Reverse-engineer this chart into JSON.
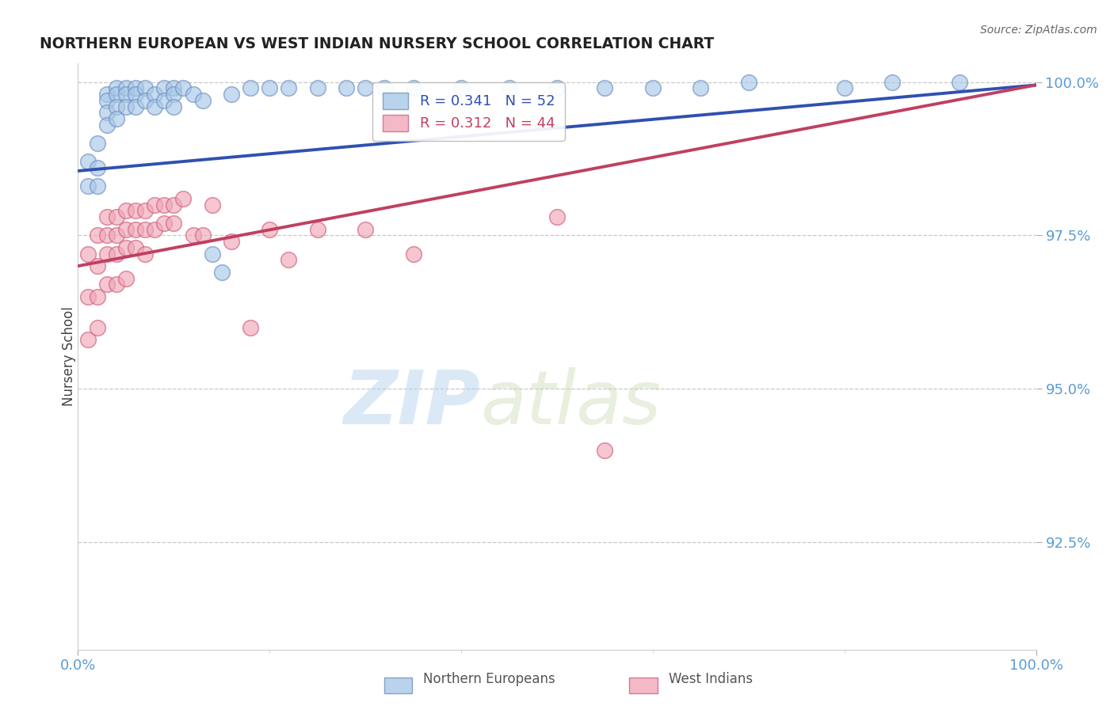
{
  "title": "NORTHERN EUROPEAN VS WEST INDIAN NURSERY SCHOOL CORRELATION CHART",
  "source": "Source: ZipAtlas.com",
  "ylabel": "Nursery School",
  "xlim": [
    0.0,
    1.0
  ],
  "ylim": [
    0.9075,
    1.003
  ],
  "yticks": [
    1.0,
    0.975,
    0.95,
    0.925
  ],
  "ytick_labels": [
    "100.0%",
    "97.5%",
    "95.0%",
    "92.5%"
  ],
  "xtick_labels": [
    "0.0%",
    "100.0%"
  ],
  "xticks": [
    0.0,
    1.0
  ],
  "legend_R_blue": "R = 0.341",
  "legend_N_blue": "N = 52",
  "legend_R_pink": "R = 0.312",
  "legend_N_pink": "N = 44",
  "blue_color": "#a8c8e8",
  "pink_color": "#f0a8b8",
  "blue_edge": "#7090c0",
  "pink_edge": "#d06080",
  "line_blue": "#3050b0",
  "line_pink": "#c04060",
  "title_color": "#222222",
  "axis_color": "#5b9bd5",
  "grid_color": "#c8c8c8",
  "ne_x": [
    0.01,
    0.01,
    0.02,
    0.02,
    0.02,
    0.03,
    0.03,
    0.03,
    0.03,
    0.04,
    0.04,
    0.04,
    0.04,
    0.05,
    0.05,
    0.05,
    0.06,
    0.06,
    0.06,
    0.07,
    0.07,
    0.08,
    0.08,
    0.09,
    0.09,
    0.1,
    0.1,
    0.1,
    0.11,
    0.12,
    0.13,
    0.14,
    0.15,
    0.16,
    0.18,
    0.2,
    0.22,
    0.25,
    0.28,
    0.3,
    0.32,
    0.35,
    0.4,
    0.45,
    0.5,
    0.55,
    0.6,
    0.65,
    0.7,
    0.8,
    0.85,
    0.92
  ],
  "ne_y": [
    0.987,
    0.983,
    0.99,
    0.986,
    0.983,
    0.998,
    0.997,
    0.995,
    0.993,
    0.999,
    0.998,
    0.996,
    0.994,
    0.999,
    0.998,
    0.996,
    0.999,
    0.998,
    0.996,
    0.999,
    0.997,
    0.998,
    0.996,
    0.999,
    0.997,
    0.999,
    0.998,
    0.996,
    0.999,
    0.998,
    0.997,
    0.972,
    0.969,
    0.998,
    0.999,
    0.999,
    0.999,
    0.999,
    0.999,
    0.999,
    0.999,
    0.999,
    0.999,
    0.999,
    0.999,
    0.999,
    0.999,
    0.999,
    1.0,
    0.999,
    1.0,
    1.0
  ],
  "wi_x": [
    0.01,
    0.01,
    0.01,
    0.02,
    0.02,
    0.02,
    0.02,
    0.03,
    0.03,
    0.03,
    0.03,
    0.04,
    0.04,
    0.04,
    0.04,
    0.05,
    0.05,
    0.05,
    0.05,
    0.06,
    0.06,
    0.06,
    0.07,
    0.07,
    0.07,
    0.08,
    0.08,
    0.09,
    0.09,
    0.1,
    0.1,
    0.11,
    0.12,
    0.13,
    0.14,
    0.16,
    0.18,
    0.2,
    0.22,
    0.25,
    0.3,
    0.35,
    0.5,
    0.55
  ],
  "wi_y": [
    0.972,
    0.965,
    0.958,
    0.975,
    0.97,
    0.965,
    0.96,
    0.978,
    0.975,
    0.972,
    0.967,
    0.978,
    0.975,
    0.972,
    0.967,
    0.979,
    0.976,
    0.973,
    0.968,
    0.979,
    0.976,
    0.973,
    0.979,
    0.976,
    0.972,
    0.98,
    0.976,
    0.98,
    0.977,
    0.98,
    0.977,
    0.981,
    0.975,
    0.975,
    0.98,
    0.974,
    0.96,
    0.976,
    0.971,
    0.976,
    0.976,
    0.972,
    0.978,
    0.94
  ],
  "ne_line_x0": 0.0,
  "ne_line_y0": 0.9855,
  "ne_line_x1": 1.0,
  "ne_line_y1": 0.9995,
  "wi_line_x0": 0.0,
  "wi_line_y0": 0.97,
  "wi_line_x1": 1.0,
  "wi_line_y1": 0.9995
}
